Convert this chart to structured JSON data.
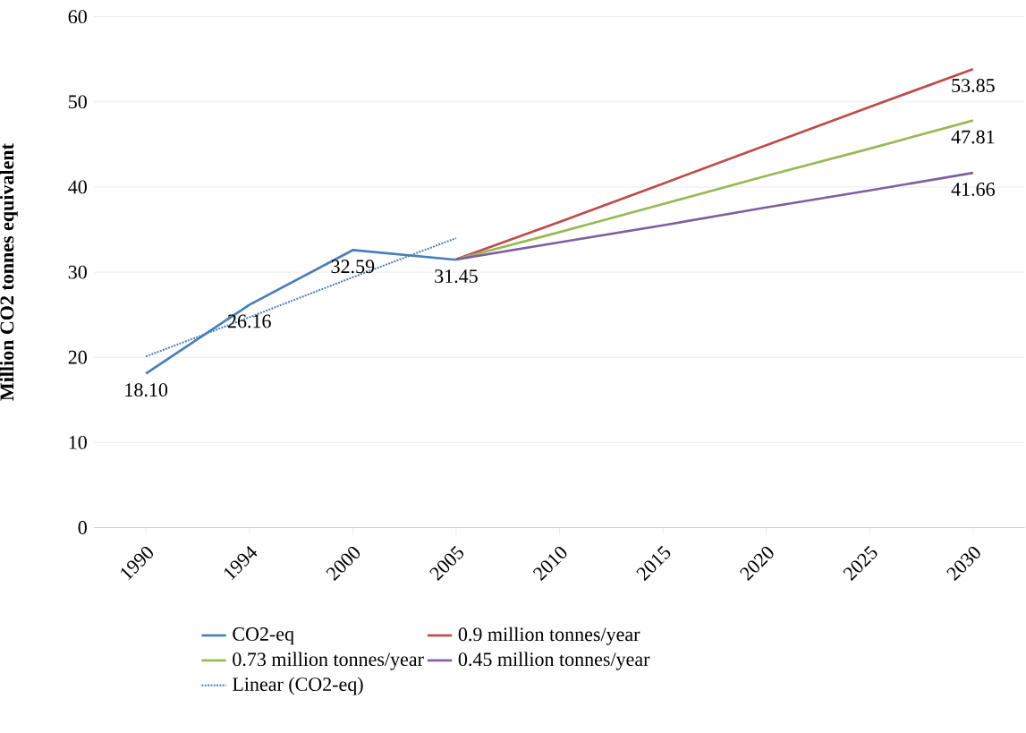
{
  "chart_data": {
    "type": "line",
    "ylabel": "Million CO2 tonnes equivalent",
    "categories": [
      "1990",
      "1994",
      "2000",
      "2005",
      "2010",
      "2015",
      "2020",
      "2025",
      "2030"
    ],
    "series": [
      {
        "name": "CO2-eq",
        "color": "#4a7ebb",
        "values": [
          18.1,
          26.16,
          32.59,
          31.45,
          null,
          null,
          null,
          null,
          null
        ],
        "value_labels": [
          "18.10",
          "26.16",
          "32.59",
          "31.45",
          null,
          null,
          null,
          null,
          null
        ]
      },
      {
        "name": "0.9 million tonnes/year",
        "color": "#be4b48",
        "values": [
          null,
          null,
          null,
          31.5,
          35.9,
          40.4,
          44.9,
          49.4,
          53.85
        ],
        "value_labels": [
          null,
          null,
          null,
          null,
          null,
          null,
          null,
          null,
          "53.85"
        ]
      },
      {
        "name": "0.73 million tonnes/year",
        "color": "#98b954",
        "values": [
          null,
          null,
          null,
          31.5,
          34.7,
          38.0,
          41.3,
          44.5,
          47.81
        ],
        "value_labels": [
          null,
          null,
          null,
          null,
          null,
          null,
          null,
          null,
          "47.81"
        ]
      },
      {
        "name": "0.45 million tonnes/year",
        "color": "#7d60a0",
        "values": [
          null,
          null,
          null,
          31.5,
          33.5,
          35.5,
          37.6,
          39.6,
          41.66
        ],
        "value_labels": [
          null,
          null,
          null,
          null,
          null,
          null,
          null,
          null,
          "41.66"
        ]
      },
      {
        "name": "Linear (CO2-eq)",
        "type": "line",
        "line_style": "dotted",
        "color": "#4a7ebb",
        "values": [
          20.1,
          24.7,
          29.4,
          34.0,
          null,
          null,
          null,
          null,
          null
        ]
      }
    ],
    "ylim": [
      0,
      60
    ],
    "yticks": [
      0,
      10,
      20,
      30,
      40,
      50,
      60
    ],
    "grid": "y",
    "legend": "bottom"
  }
}
